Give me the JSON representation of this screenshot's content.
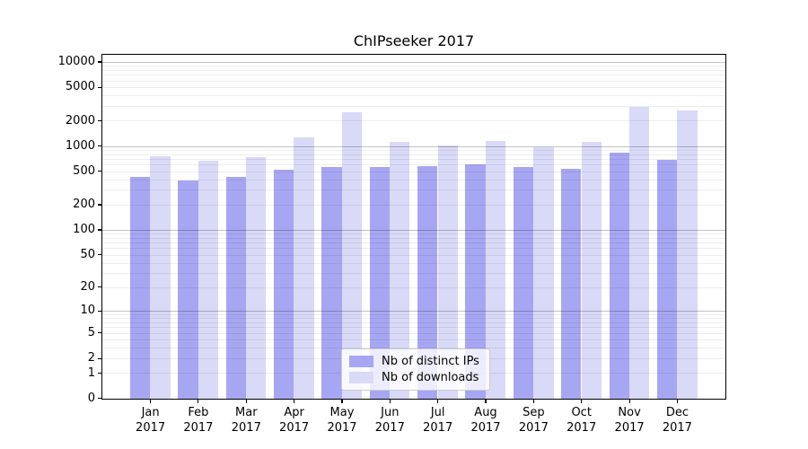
{
  "figure": {
    "background": "#ffffff",
    "text_color": "#000000",
    "axis_color": "#000000"
  },
  "chart_data": {
    "type": "bar",
    "title": "ChIPseeker 2017",
    "scale": "log1p",
    "grid": {
      "on": true,
      "major_color": "rgba(0,0,0,0.24)",
      "minor_color": "rgba(0,0,0,0.07)"
    },
    "legend_position": "lower center",
    "year": "2017",
    "categories": [
      "Jan",
      "Feb",
      "Mar",
      "Apr",
      "May",
      "Jun",
      "Jul",
      "Aug",
      "Sep",
      "Oct",
      "Nov",
      "Dec"
    ],
    "yticks": [
      0,
      1,
      2,
      5,
      10,
      20,
      50,
      100,
      200,
      500,
      1000,
      2000,
      5000,
      10000
    ],
    "ylim": [
      0,
      12700
    ],
    "series": [
      {
        "name": "Nb of distinct IPs",
        "color": "#a6a6f2",
        "values": [
          440,
          395,
          435,
          530,
          575,
          575,
          590,
          610,
          575,
          545,
          855,
          695
        ]
      },
      {
        "name": "Nb of downloads",
        "color": "#d9d9f8",
        "values": [
          765,
          680,
          750,
          1290,
          2600,
          1150,
          1030,
          1175,
          980,
          1135,
          2970,
          2690
        ]
      }
    ]
  }
}
